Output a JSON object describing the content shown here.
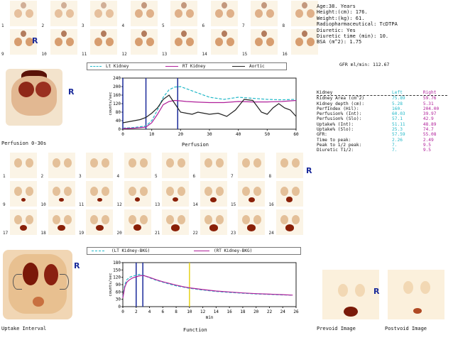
{
  "patient": {
    "lines": [
      "Age:38. Years",
      "Height:(cm): 176.",
      "Weight:(kg): 61.",
      "Radiopharmaceutical:  TcDTPA",
      "Diuretic:  Yes",
      "Diuretic time (min): 10.",
      "BSA (m^2): 1.75"
    ]
  },
  "gfr_header": "GFR ml/min: 112.67",
  "markers": {
    "right": "R"
  },
  "top_frames": {
    "numbers": [
      "1",
      "2",
      "3",
      "4",
      "5",
      "6",
      "7",
      "8",
      "9",
      "10",
      "11",
      "12",
      "13",
      "14",
      "15",
      "16"
    ]
  },
  "mid_frames": {
    "numbers": [
      "1",
      "2",
      "3",
      "4",
      "5",
      "6",
      "7",
      "8",
      "9",
      "10",
      "11",
      "12",
      "13",
      "14",
      "15",
      "16",
      "17",
      "18",
      "19",
      "20",
      "21",
      "22",
      "23",
      "24"
    ]
  },
  "perfusion_image_label": "Perfusion 0-30s",
  "uptake_image_label": "Uptake Interval",
  "prevoid_label": "Prevoid Image",
  "postvoid_label": "Postvoid Image",
  "perfusion_legend": [
    "Lt Kidney",
    "RT Kidney",
    "Aortic"
  ],
  "function_legend": [
    "(LT Kidney-BKG)",
    "(RT Kidney-BKG)"
  ],
  "colors": {
    "left": "#22b8c8",
    "right": "#b0209a",
    "aortic": "#222222",
    "marker": "#1a2a9a",
    "yellow": "#e6d21a"
  },
  "table": {
    "headers": [
      "Kidney",
      "Left",
      "Right"
    ],
    "rows": [
      [
        "Kidney Area (cm^2)",
        "75.89",
        "59.76"
      ],
      [
        "Kidney depth (cm):",
        "5.28",
        "5.31"
      ],
      [
        "PerfIndex (Hil):",
        "160.",
        "204.00"
      ],
      [
        "Perfusion% (Int):",
        "60.03",
        "39.97"
      ],
      [
        "Perfusion% (Slo):",
        "57.1",
        "42.9"
      ],
      [
        "Uptake% (Int):",
        "51.11",
        "48.89"
      ],
      [
        "Uptake% (Slo):",
        "25.3",
        "74.7"
      ],
      [
        "GFR:",
        "57.59",
        "55.08"
      ],
      [
        "Time to peak:",
        "2.26",
        "2.49"
      ],
      [
        "Peak to 1/2 peak:",
        "7.",
        "9.5"
      ],
      [
        "Diuretic T1/2:",
        "7.",
        "9.5"
      ]
    ]
  },
  "chart_data": [
    {
      "type": "line",
      "title": "Perfusion",
      "ylabel": "counts/sec",
      "xlim": [
        0,
        60
      ],
      "ylim": [
        0,
        240
      ],
      "xticks": [
        "0",
        "10",
        "20",
        "30",
        "40",
        "50",
        "60"
      ],
      "yticks": [
        "0",
        "40",
        "80",
        "120",
        "160",
        "200",
        "240"
      ],
      "series": [
        {
          "name": "Lt Kidney",
          "x": [
            0,
            4,
            8,
            10,
            12,
            14,
            16,
            18,
            20,
            22,
            26,
            30,
            35,
            40,
            45,
            50,
            55,
            60
          ],
          "y": [
            5,
            8,
            15,
            40,
            90,
            150,
            185,
            198,
            200,
            190,
            170,
            150,
            140,
            150,
            145,
            140,
            138,
            140
          ]
        },
        {
          "name": "RT Kidney",
          "x": [
            0,
            4,
            8,
            10,
            12,
            14,
            16,
            18,
            20,
            22,
            26,
            30,
            35,
            40,
            45,
            50,
            55,
            60
          ],
          "y": [
            3,
            5,
            10,
            30,
            70,
            115,
            130,
            135,
            133,
            130,
            127,
            125,
            125,
            130,
            128,
            128,
            130,
            135
          ]
        },
        {
          "name": "Aortic",
          "x": [
            0,
            2,
            4,
            6,
            8,
            10,
            12,
            14,
            16,
            18,
            20,
            22,
            24,
            26,
            28,
            30,
            33,
            36,
            39,
            42,
            45,
            48,
            50,
            52,
            54,
            56,
            58,
            60
          ],
          "y": [
            30,
            35,
            40,
            45,
            55,
            75,
            100,
            140,
            160,
            120,
            80,
            75,
            70,
            80,
            75,
            70,
            75,
            60,
            90,
            140,
            135,
            80,
            70,
            100,
            120,
            100,
            90,
            60
          ]
        }
      ],
      "markers_x": [
        0,
        8,
        19
      ]
    },
    {
      "type": "line",
      "title": "Function",
      "xlabel": "min",
      "ylabel": "counts/sec",
      "xlim": [
        0,
        26
      ],
      "ylim": [
        0,
        180
      ],
      "xticks": [
        "0",
        "2",
        "4",
        "6",
        "8",
        "10",
        "12",
        "14",
        "16",
        "18",
        "20",
        "22",
        "24",
        "26"
      ],
      "yticks": [
        "0",
        "30",
        "60",
        "90",
        "120",
        "150",
        "180"
      ],
      "series": [
        {
          "name": "(LT Kidney-BKG)",
          "x": [
            0,
            0.3,
            0.6,
            1,
            1.5,
            2,
            2.5,
            3,
            4,
            5,
            6,
            7,
            8,
            9,
            10,
            12,
            14,
            16,
            18,
            20,
            22,
            24,
            25.5
          ],
          "y": [
            40,
            90,
            110,
            120,
            125,
            128,
            132,
            130,
            118,
            108,
            100,
            92,
            85,
            80,
            75,
            68,
            62,
            58,
            55,
            52,
            50,
            48,
            47
          ]
        },
        {
          "name": "(RT Kidney-BKG)",
          "x": [
            0,
            0.3,
            0.6,
            1,
            1.5,
            2,
            2.5,
            3,
            4,
            5,
            6,
            7,
            8,
            9,
            10,
            12,
            14,
            16,
            18,
            20,
            22,
            24,
            25.5
          ],
          "y": [
            35,
            80,
            100,
            110,
            118,
            122,
            126,
            128,
            120,
            110,
            102,
            95,
            88,
            82,
            77,
            70,
            64,
            60,
            56,
            53,
            51,
            49,
            47
          ]
        }
      ],
      "markers_x": [
        2,
        3,
        10
      ]
    }
  ]
}
